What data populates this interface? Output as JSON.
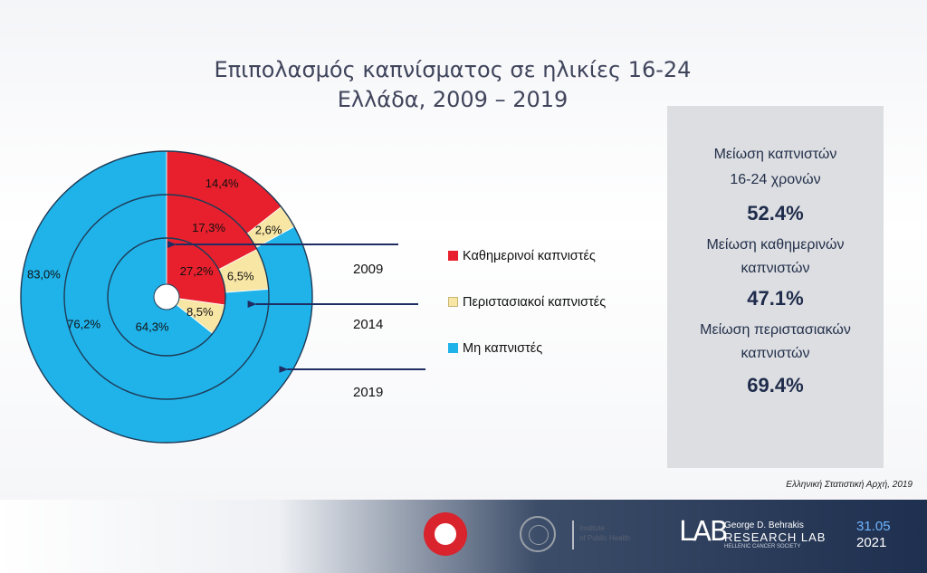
{
  "colors": {
    "daily": "#e8202d",
    "occasional": "#f8e6a5",
    "non": "#1fb3ea"
  },
  "chart_data": {
    "type": "pie",
    "title": "Επιπολασμός καπνίσματος σε ηλικίες 16-24",
    "subtitle": "Ελλάδα, 2009 – 2019",
    "legend_position": "right",
    "series_legend": [
      "Καθημερινοί καπνιστές",
      "Περιστασιακοί καπνιστές",
      "Μη καπνιστές"
    ],
    "rings": [
      {
        "year": "2009",
        "values": [
          27.2,
          8.5,
          64.3
        ],
        "labels": [
          "27,2%",
          "8,5%",
          "64,3%"
        ]
      },
      {
        "year": "2014",
        "values": [
          17.3,
          6.5,
          76.2
        ],
        "labels": [
          "17,3%",
          "6,5%",
          "76,2%"
        ]
      },
      {
        "year": "2019",
        "values": [
          14.4,
          2.6,
          83.0
        ],
        "labels": [
          "14,4%",
          "2,6%",
          "83,0%"
        ]
      }
    ]
  },
  "years": [
    "2009",
    "2014",
    "2019"
  ],
  "panel": {
    "t1": "Μείωση καπνιστών",
    "t2": "16-24 χρονών",
    "v1": "52.4%",
    "t3": "Μείωση καθημερινών",
    "t4": "καπνιστών",
    "v2": "47.1%",
    "t5": "Μείωση περιστασιακών",
    "t6": "καπνιστών",
    "v3": "69.4%"
  },
  "source": "Ελληνική Στατιστική Αρχή, 2019",
  "footer": {
    "iph_line1": "Institute",
    "iph_line2": "of Public Health",
    "lab_mark": "LAB",
    "lab_line1": "George D. Behrakis",
    "lab_line2": "RESEARCH LAB",
    "lab_line3": "HELLENIC CANCER SOCIETY",
    "date_dm": "31.05",
    "date_y": "2021"
  }
}
